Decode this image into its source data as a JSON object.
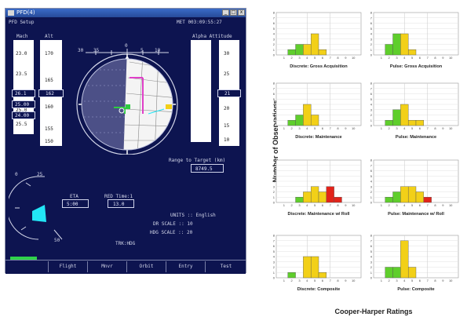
{
  "pfd": {
    "window_title": "PFD(4)",
    "title_buttons": [
      "_",
      "□",
      "x"
    ],
    "header_left": "PFD Setup",
    "header_right": "MET 003:09:55:27",
    "mach_label": "Mach",
    "alt_label": "Alt",
    "right_top_label": "Alpha Attitude",
    "left_tape_values": [
      "23.0",
      "23.5",
      "25.0",
      "25.5"
    ],
    "left_tape_highlight": "26.1",
    "left_tape_box": "25.00",
    "left_tape_box2": "24.00",
    "alt_tape_values": [
      "170",
      "165",
      "160",
      "155",
      "150"
    ],
    "alt_tape_highlight": "162",
    "right_tape_values": [
      "30",
      "25",
      "20",
      "15",
      "10"
    ],
    "right_tape_highlight": "21",
    "range_label": "Range to Target (km)",
    "range_value": "8749.5",
    "eta_label": "ETA",
    "eta_value": "5:00",
    "ref_label": "RED Time:1",
    "ref_value": "13.0",
    "units_text": "UNITS :: English",
    "dr_scale_text": "DR SCALE :: 10",
    "hdg_scale_text": "HDG SCALE :: 20",
    "footer_label": "TRK:HDG",
    "heading_ticks": [
      "30",
      "35",
      "0",
      "5",
      "10"
    ],
    "nav_bars": [
      "0",
      "25",
      "50"
    ],
    "progress_fraction": 0.33,
    "tabs": [
      "Flight",
      "Mnvr",
      "Orbit",
      "Entry",
      "Test"
    ]
  },
  "chart_panel": {
    "y_axis_label": "Number of Observations",
    "x_axis_label": "Cooper-Harper Ratings"
  },
  "chart_data": [
    {
      "type": "bar",
      "title": "Discrete: Gross Acquisition",
      "categories": [
        "1",
        "2",
        "3",
        "4",
        "5",
        "6",
        "7",
        "8",
        "9",
        "10"
      ],
      "values": [
        0,
        1,
        2,
        2,
        4,
        1,
        0,
        0,
        0,
        0
      ],
      "ylim": [
        0,
        8
      ],
      "yticks": [
        "0",
        "1",
        "2",
        "3",
        "4",
        "5",
        "6",
        "7",
        "8"
      ]
    },
    {
      "type": "bar",
      "title": "Pulse: Gross Acquisition",
      "categories": [
        "1",
        "2",
        "3",
        "4",
        "5",
        "6",
        "7",
        "8",
        "9",
        "10"
      ],
      "values": [
        0,
        2,
        4,
        4,
        1,
        0,
        0,
        0,
        0,
        0
      ],
      "ylim": [
        0,
        8
      ],
      "yticks": [
        "0",
        "1",
        "2",
        "3",
        "4",
        "5",
        "6",
        "7",
        "8"
      ]
    },
    {
      "type": "bar",
      "title": "Discrete: Maintenance",
      "categories": [
        "1",
        "2",
        "3",
        "4",
        "5",
        "6",
        "7",
        "8",
        "9",
        "10"
      ],
      "values": [
        0,
        1,
        2,
        4,
        2,
        0,
        0,
        0,
        0,
        0
      ],
      "ylim": [
        0,
        8
      ],
      "yticks": [
        "0",
        "1",
        "2",
        "3",
        "4",
        "5",
        "6",
        "7",
        "8"
      ]
    },
    {
      "type": "bar",
      "title": "Pulse: Maintenance",
      "categories": [
        "1",
        "2",
        "3",
        "4",
        "5",
        "6",
        "7",
        "8",
        "9",
        "10"
      ],
      "values": [
        0,
        1,
        3,
        4,
        1,
        1,
        0,
        0,
        0,
        0
      ],
      "ylim": [
        0,
        8
      ],
      "yticks": [
        "0",
        "1",
        "2",
        "3",
        "4",
        "5",
        "6",
        "7",
        "8"
      ]
    },
    {
      "type": "bar",
      "title": "Discrete: Maintenance w/ Roll",
      "categories": [
        "1",
        "2",
        "3",
        "4",
        "5",
        "6",
        "7",
        "8",
        "9",
        "10"
      ],
      "values": [
        0,
        0,
        1,
        2,
        3,
        2,
        3,
        1,
        0,
        0
      ],
      "ylim": [
        0,
        8
      ],
      "yticks": [
        "0",
        "1",
        "2",
        "3",
        "4",
        "5",
        "6",
        "7",
        "8"
      ]
    },
    {
      "type": "bar",
      "title": "Pulse: Maintenance w/ Roll",
      "categories": [
        "1",
        "2",
        "3",
        "4",
        "5",
        "6",
        "7",
        "8",
        "9",
        "10"
      ],
      "values": [
        0,
        1,
        2,
        3,
        3,
        2,
        1,
        0,
        0,
        0
      ],
      "ylim": [
        0,
        8
      ],
      "yticks": [
        "0",
        "1",
        "2",
        "3",
        "4",
        "5",
        "6",
        "7",
        "8"
      ]
    },
    {
      "type": "bar",
      "title": "Discrete: Composite",
      "categories": [
        "1",
        "2",
        "3",
        "4",
        "5",
        "6",
        "7",
        "8",
        "9",
        "10"
      ],
      "values": [
        0,
        1,
        0,
        4,
        4,
        1,
        0,
        0,
        0,
        0
      ],
      "ylim": [
        0,
        8
      ],
      "yticks": [
        "0",
        "1",
        "2",
        "3",
        "4",
        "5",
        "6",
        "7",
        "8"
      ]
    },
    {
      "type": "bar",
      "title": "Pulse: Composite",
      "categories": [
        "1",
        "2",
        "3",
        "4",
        "5",
        "6",
        "7",
        "8",
        "9",
        "10"
      ],
      "values": [
        0,
        2,
        2,
        7,
        2,
        0,
        0,
        0,
        0,
        0
      ],
      "ylim": [
        0,
        8
      ],
      "yticks": [
        "0",
        "1",
        "2",
        "3",
        "4",
        "5",
        "6",
        "7",
        "8"
      ]
    }
  ],
  "colors": {
    "level1_green": "#5fce2c",
    "level2_yellow": "#f2d018",
    "level3_red": "#e2231a",
    "pfd_background": "#0d1450",
    "adi_sky": "#4c5087",
    "adi_ground": "#f4f4f4",
    "roll_indicator": "#22e6f6",
    "magenta_cue": "#e040c8"
  }
}
